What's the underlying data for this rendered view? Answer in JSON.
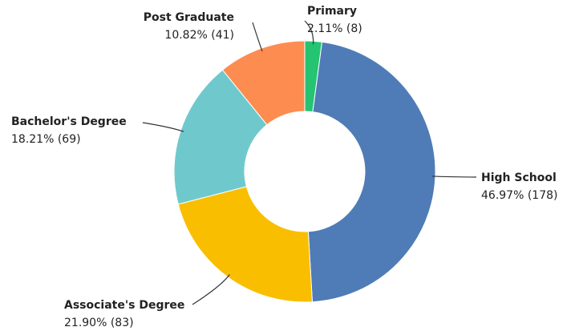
{
  "chart_data": {
    "type": "donut",
    "categories": [
      "Primary",
      "High School",
      "Associate's Degree",
      "Bachelor's Degree",
      "Post Graduate"
    ],
    "values": [
      2.11,
      46.97,
      21.9,
      18.21,
      10.82
    ],
    "value_labels": [
      "2.11% (8)",
      "46.97% (178)",
      "21.90% (83)",
      "18.21% (69)",
      "10.82% (41)"
    ],
    "colors": [
      "#24c472",
      "#4f7cb6",
      "#f9be00",
      "#6fc9cc",
      "#fd8c50"
    ]
  }
}
